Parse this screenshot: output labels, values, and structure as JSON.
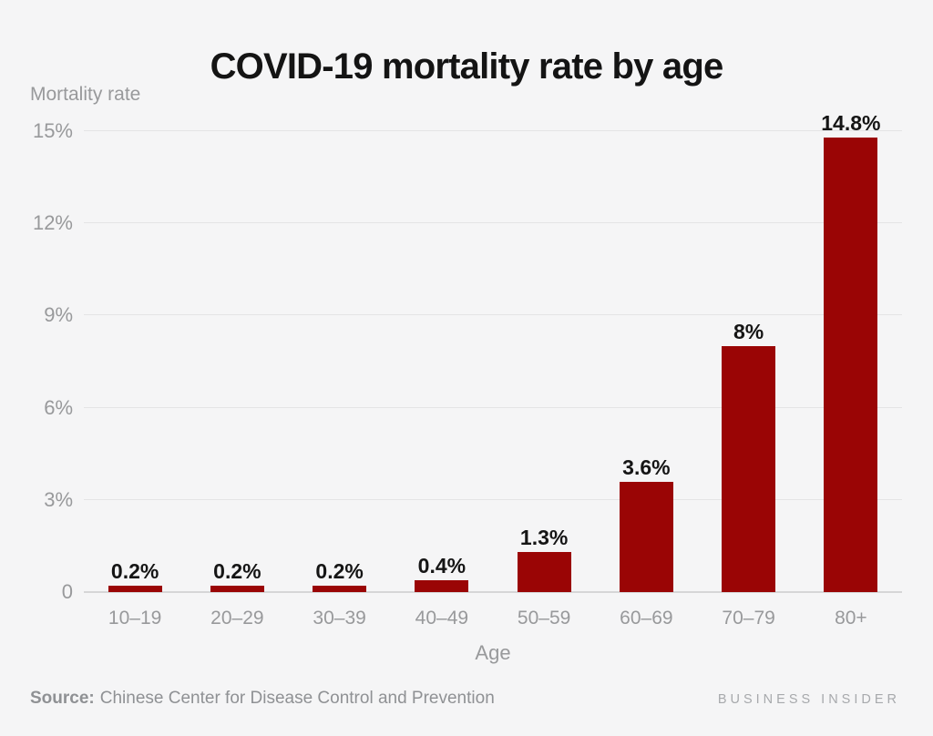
{
  "header": {
    "title": "COVID-19 mortality rate by age"
  },
  "footer": {
    "source_label": "Source:",
    "source_text": "Chinese Center for Disease Control and Prevention",
    "brand": "BUSINESS INSIDER"
  },
  "chart_data": {
    "type": "bar",
    "title": "COVID-19 mortality rate by age",
    "categories": [
      "10–19",
      "20–29",
      "30–39",
      "40–49",
      "50–59",
      "60–69",
      "70–79",
      "80+"
    ],
    "values": [
      0.2,
      0.2,
      0.2,
      0.4,
      1.3,
      3.6,
      8,
      14.8
    ],
    "value_labels": [
      "0.2%",
      "0.2%",
      "0.2%",
      "0.4%",
      "1.3%",
      "3.6%",
      "8%",
      "14.8%"
    ],
    "xlabel": "Age",
    "ylabel": "Mortality rate",
    "y_ticks": [
      "0",
      "3%",
      "6%",
      "9%",
      "12%",
      "15%"
    ],
    "y_tick_values": [
      0,
      3,
      6,
      9,
      12,
      15
    ],
    "ylim": [
      0,
      15
    ],
    "grid": true,
    "legend": "none",
    "bar_color": "#9a0505",
    "background_color": "#f5f5f6",
    "gridline_color": "#e4e4e5",
    "axis_line_color": "#d6d6d7",
    "tick_label_color": "#98999b",
    "value_label_color": "#151515"
  }
}
